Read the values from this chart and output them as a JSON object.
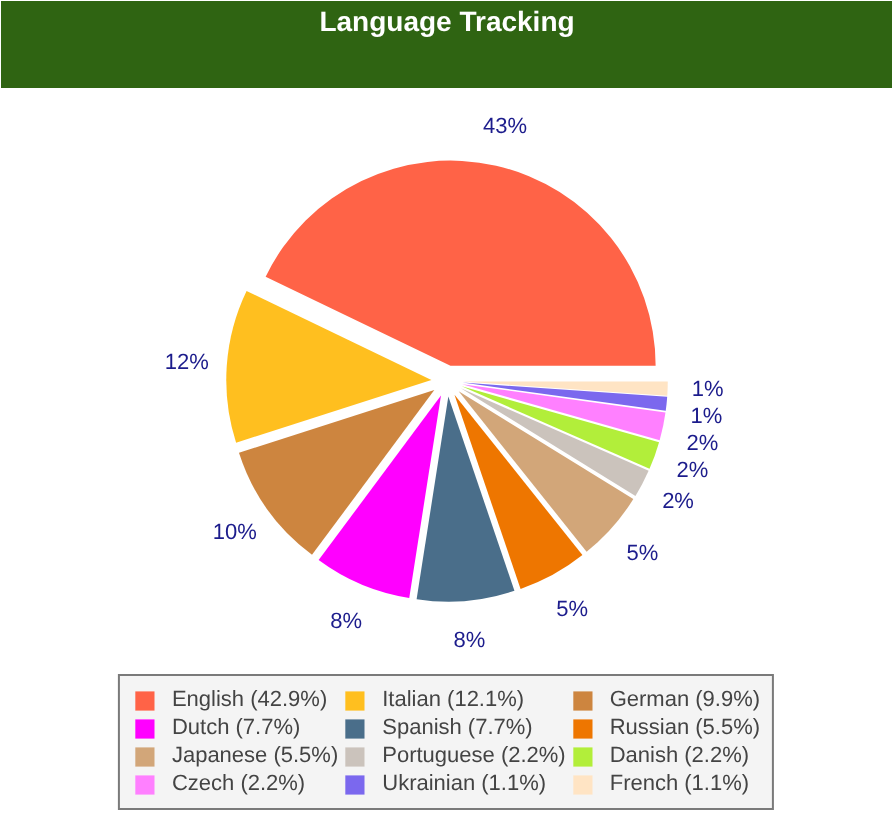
{
  "chart_data": {
    "type": "pie",
    "title": "Language Tracking",
    "categories": [
      "English (42.9%)",
      "Italian (12.1%)",
      "German (9.9%)",
      "Dutch (7.7%)",
      "Spanish (7.7%)",
      "Russian (5.5%)",
      "Japanese (5.5%)",
      "Portuguese (2.2%)",
      "Danish (2.2%)",
      "Czech (2.2%)",
      "Ukrainian (1.1%)",
      "French (1.1%)"
    ],
    "values": [
      42.9,
      12.1,
      9.9,
      7.7,
      7.7,
      5.5,
      5.5,
      2.2,
      2.2,
      2.2,
      1.1,
      1.1
    ],
    "colors": [
      "#ff6347",
      "#ffbf1f",
      "#cd853f",
      "#ff00ff",
      "#4a6e8a",
      "#ee7600",
      "#d2a679",
      "#cbc3bc",
      "#b2ee3a",
      "#ff80ff",
      "#7b68ee",
      "#ffe4c4"
    ],
    "value_labels": [
      "43%",
      "12%",
      "10%",
      "8%",
      "8%",
      "5%",
      "5%",
      "2%",
      "2%",
      "2%",
      "1%",
      "1%"
    ],
    "legend": "bottom"
  }
}
